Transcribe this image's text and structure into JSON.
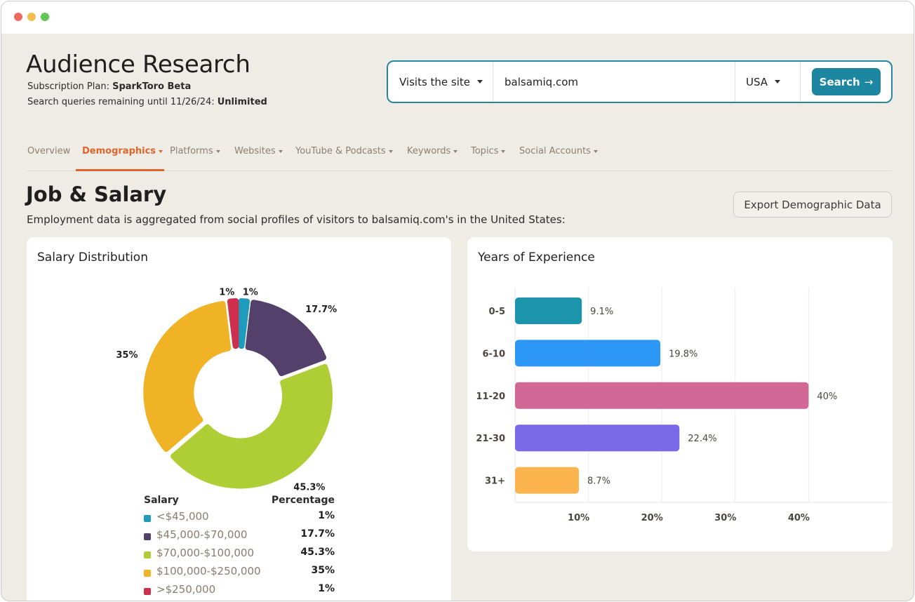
{
  "window": {
    "controls": [
      "close",
      "minimize",
      "zoom"
    ]
  },
  "header": {
    "title": "Audience Research",
    "plan_prefix": "Subscription Plan: ",
    "plan_value": "SparkToro Beta",
    "queries_prefix": "Search queries remaining until 11/26/24: ",
    "queries_value": "Unlimited"
  },
  "search": {
    "mode": "Visits the site",
    "query": "balsamiq.com",
    "country": "USA",
    "button_label": "Search"
  },
  "tabs": [
    {
      "label": "Overview",
      "dropdown": false,
      "active": false
    },
    {
      "label": "Demographics",
      "dropdown": true,
      "active": true
    },
    {
      "label": "Platforms",
      "dropdown": true,
      "active": false
    },
    {
      "label": "Websites",
      "dropdown": true,
      "active": false
    },
    {
      "label": "YouTube & Podcasts",
      "dropdown": true,
      "active": false
    },
    {
      "label": "Keywords",
      "dropdown": true,
      "active": false
    },
    {
      "label": "Topics",
      "dropdown": true,
      "active": false
    },
    {
      "label": "Social Accounts",
      "dropdown": true,
      "active": false
    }
  ],
  "section": {
    "title": "Job & Salary",
    "description": "Employment data is aggregated from social profiles of visitors to balsamiq.com's in the United States:",
    "export_label": "Export Demographic Data"
  },
  "salary_card": {
    "title": "Salary Distribution",
    "legend_header_left": "Salary",
    "legend_header_right": "Percentage"
  },
  "experience_card": {
    "title": "Years of Experience"
  },
  "colors": {
    "accent": "#e0652a",
    "brand": "#1d86a0"
  },
  "chart_data": [
    {
      "type": "pie",
      "style": "donut",
      "title": "Salary Distribution",
      "categories": [
        "<$45,000",
        "$45,000-$70,000",
        "$70,000-$100,000",
        "$100,000-$250,000",
        ">$250,000"
      ],
      "values": [
        1,
        17.7,
        45.3,
        35,
        1
      ],
      "value_labels": [
        "1%",
        "17.7%",
        "45.3%",
        "35%",
        "1%"
      ],
      "colors": [
        "#1f9bbd",
        "#53406b",
        "#afcd35",
        "#f0b325",
        "#cc304d"
      ]
    },
    {
      "type": "bar",
      "orientation": "horizontal",
      "title": "Years of Experience",
      "categories": [
        "0-5",
        "6-10",
        "11-20",
        "21-30",
        "31+"
      ],
      "values": [
        9.1,
        19.8,
        40,
        22.4,
        8.7
      ],
      "value_labels": [
        "9.1%",
        "19.8%",
        "40%",
        "22.4%",
        "8.7%"
      ],
      "colors": [
        "#1c94ac",
        "#2d97f6",
        "#d26896",
        "#7b68e6",
        "#fbb44e"
      ],
      "x_ticks": [
        "10%",
        "20%",
        "30%",
        "40%"
      ],
      "xlim": [
        0,
        43
      ],
      "grid": true
    }
  ]
}
